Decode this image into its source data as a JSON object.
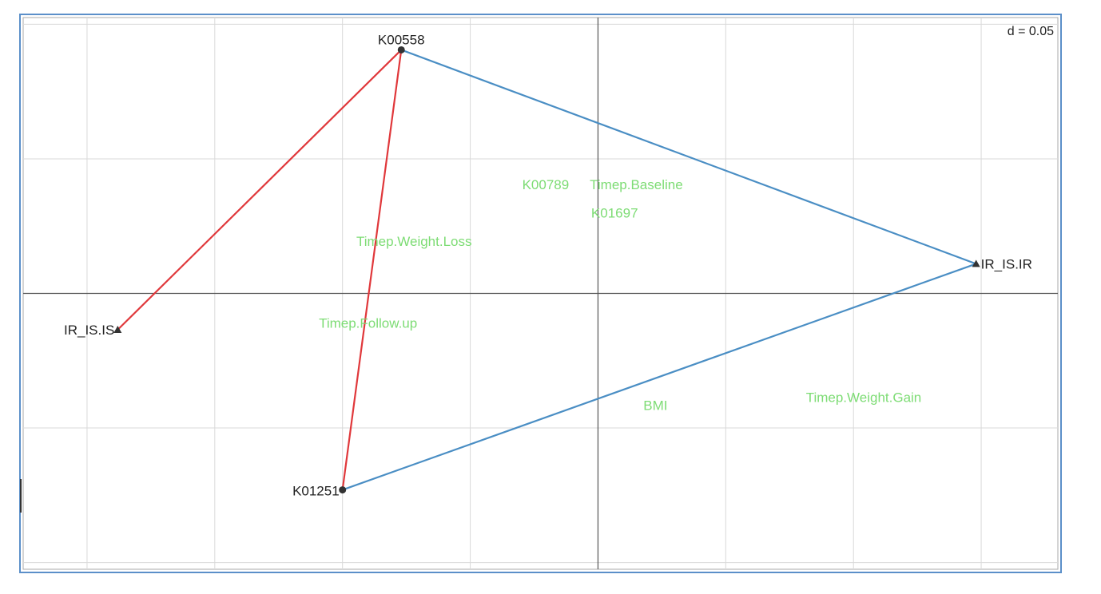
{
  "chart_data": {
    "type": "scatter",
    "scale_label": "d = 0.05",
    "xlim": [
      -0.225,
      0.18
    ],
    "ylim": [
      -0.1025,
      0.1025
    ],
    "grid_step": 0.05,
    "grid": true,
    "colors": {
      "frame": "#5b8fc9",
      "grid": "#d9d9d9",
      "axis": "#555555",
      "hull_red": "#e0383b",
      "hull_blue": "#4a8ec4",
      "green_text": "#7ddc74",
      "points": "#333333"
    },
    "hulls": [
      {
        "color": "red",
        "points": [
          "IR_IS.IS",
          "K00558",
          "K01251"
        ]
      },
      {
        "color": "blue",
        "points": [
          "K00558",
          "IR_IS.IR",
          "K01251"
        ]
      }
    ],
    "samples": [
      {
        "label": "K00558",
        "x": -0.077,
        "y": 0.0905
      },
      {
        "label": "K01251",
        "x": -0.1,
        "y": -0.073
      }
    ],
    "groups": [
      {
        "label": "IR_IS.IS",
        "x": -0.188,
        "y": -0.0135
      },
      {
        "label": "IR_IS.IR",
        "x": 0.148,
        "y": 0.011
      }
    ],
    "variables": [
      {
        "label": "K00789",
        "x": -0.0205,
        "y": 0.0405
      },
      {
        "label": "Timep.Baseline",
        "x": 0.015,
        "y": 0.0405
      },
      {
        "label": "K01697",
        "x": 0.0065,
        "y": 0.03
      },
      {
        "label": "Timep.Weight.Loss",
        "x": -0.072,
        "y": 0.0195
      },
      {
        "label": "Timep.Follow.up",
        "x": -0.09,
        "y": -0.011
      },
      {
        "label": "BMI",
        "x": 0.0225,
        "y": -0.0415
      },
      {
        "label": "Timep.Weight.Gain",
        "x": 0.104,
        "y": -0.0385
      }
    ]
  }
}
